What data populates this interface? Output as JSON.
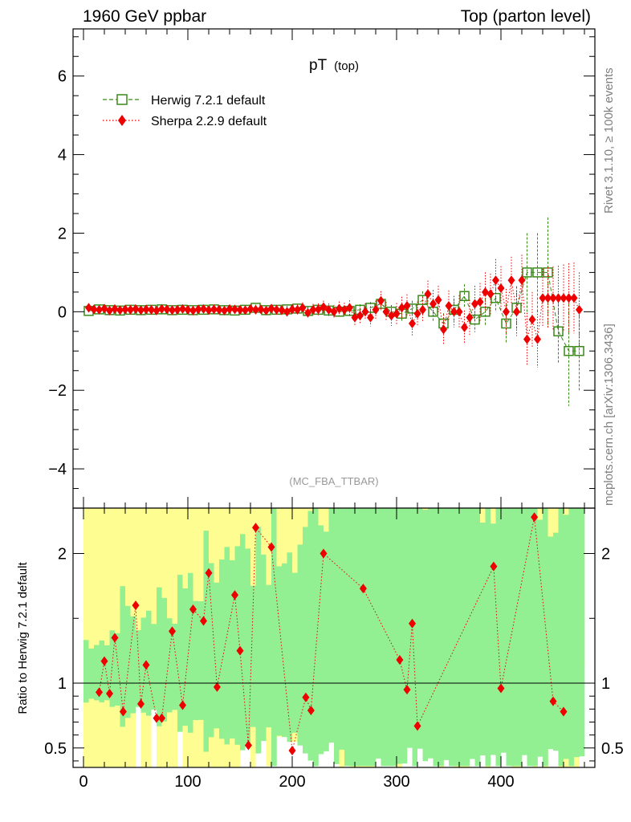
{
  "header": {
    "left": "1960 GeV ppbar",
    "right": "Top (parton level)"
  },
  "side_labels": {
    "rivet": "Rivet 3.1.10, ≥ 100k events",
    "mcplots": "mcplots.cern.ch [arXiv:1306.3436]"
  },
  "chart_data": [
    {
      "type": "scatter",
      "title": "pT",
      "title_sub": "(top)",
      "annotation": "(MC_FBA_TTBAR)",
      "xlim": [
        -10,
        490
      ],
      "ylim": [
        -5,
        7.2
      ],
      "yticks": [
        -4,
        -2,
        0,
        2,
        4,
        6
      ],
      "ytick_labels": [
        "−4",
        "−2",
        "0",
        "2",
        "4",
        "6"
      ],
      "legend_position": "top-left",
      "series": [
        {
          "name": "Herwig 7.2.1 default",
          "color": "#3a8a1a",
          "marker": "open-square",
          "line": "dashed",
          "x": [
            5,
            15,
            25,
            35,
            45,
            55,
            65,
            75,
            85,
            95,
            105,
            115,
            125,
            135,
            145,
            155,
            165,
            175,
            185,
            195,
            205,
            215,
            225,
            235,
            245,
            255,
            265,
            275,
            285,
            295,
            305,
            315,
            325,
            335,
            345,
            355,
            365,
            375,
            385,
            395,
            405,
            415,
            425,
            435,
            445,
            455,
            465,
            475
          ],
          "y": [
            0.02,
            0.06,
            0.04,
            0.03,
            0.05,
            0.04,
            0.05,
            0.06,
            0.04,
            0.05,
            0.04,
            0.05,
            0.06,
            0.04,
            0.03,
            0.05,
            0.1,
            0.04,
            0.05,
            0.06,
            0.08,
            0.02,
            0.05,
            0.03,
            0.0,
            0.02,
            0.05,
            0.1,
            0.2,
            0.0,
            -0.05,
            0.08,
            0.3,
            0.0,
            -0.3,
            0.05,
            0.4,
            -0.2,
            0.0,
            0.35,
            -0.3,
            0.1,
            1.0,
            1.0,
            1.0,
            -0.5,
            -1.0,
            -1.0
          ],
          "yerr": [
            0.05,
            0.05,
            0.05,
            0.05,
            0.05,
            0.05,
            0.05,
            0.05,
            0.05,
            0.05,
            0.06,
            0.06,
            0.06,
            0.06,
            0.07,
            0.07,
            0.08,
            0.08,
            0.09,
            0.09,
            0.1,
            0.1,
            0.11,
            0.12,
            0.12,
            0.13,
            0.14,
            0.15,
            0.16,
            0.17,
            0.18,
            0.2,
            0.22,
            0.24,
            0.26,
            0.28,
            0.3,
            0.32,
            0.34,
            0.36,
            0.5,
            0.55,
            1.0,
            1.0,
            1.4,
            0.8,
            1.4,
            1.0
          ]
        },
        {
          "name": "Sherpa 2.2.9 default",
          "color": "#ee0000",
          "marker": "filled-diamond",
          "line": "dotted",
          "x": [
            5,
            10,
            15,
            20,
            25,
            30,
            35,
            40,
            45,
            50,
            55,
            60,
            65,
            70,
            75,
            80,
            85,
            90,
            95,
            100,
            105,
            110,
            115,
            120,
            125,
            130,
            135,
            140,
            145,
            150,
            155,
            160,
            165,
            170,
            175,
            180,
            185,
            190,
            195,
            200,
            205,
            210,
            215,
            220,
            225,
            230,
            235,
            240,
            245,
            250,
            255,
            260,
            265,
            270,
            275,
            280,
            285,
            290,
            295,
            300,
            305,
            310,
            315,
            320,
            325,
            330,
            335,
            340,
            345,
            350,
            355,
            360,
            365,
            370,
            375,
            380,
            385,
            390,
            395,
            400,
            405,
            410,
            415,
            420,
            425,
            430,
            435,
            440,
            445,
            450,
            455,
            460,
            465,
            470,
            475
          ],
          "y": [
            0.1,
            0.06,
            0.05,
            0.08,
            0.03,
            0.07,
            0.04,
            0.06,
            0.05,
            0.07,
            0.04,
            0.06,
            0.05,
            0.03,
            0.07,
            0.06,
            0.04,
            0.05,
            0.07,
            0.05,
            0.03,
            0.06,
            0.07,
            0.04,
            0.06,
            0.05,
            0.03,
            0.07,
            0.06,
            0.05,
            0.04,
            0.07,
            0.05,
            0.06,
            0.03,
            0.08,
            0.05,
            0.04,
            0.0,
            0.06,
            0.05,
            0.1,
            -0.03,
            0.05,
            0.06,
            0.12,
            0.05,
            0.0,
            0.08,
            0.05,
            0.1,
            -0.15,
            -0.1,
            0.0,
            -0.15,
            0.05,
            0.28,
            0.0,
            -0.1,
            -0.05,
            0.1,
            0.15,
            -0.3,
            -0.05,
            0.05,
            0.45,
            0.2,
            0.3,
            -0.45,
            0.15,
            0.0,
            0.0,
            -0.4,
            -0.15,
            0.2,
            0.25,
            0.5,
            0.45,
            0.8,
            0.6,
            0.0,
            0.8,
            0.0,
            0.8,
            -0.7,
            -0.2,
            -0.7,
            0.35,
            0.35,
            0.35,
            0.35,
            0.35,
            0.35,
            0.35,
            0.05
          ],
          "yerr": [
            0.05,
            0.05,
            0.05,
            0.05,
            0.05,
            0.05,
            0.05,
            0.05,
            0.05,
            0.05,
            0.05,
            0.05,
            0.05,
            0.05,
            0.05,
            0.06,
            0.06,
            0.06,
            0.06,
            0.06,
            0.07,
            0.07,
            0.07,
            0.07,
            0.08,
            0.08,
            0.08,
            0.08,
            0.09,
            0.09,
            0.09,
            0.1,
            0.1,
            0.1,
            0.11,
            0.11,
            0.12,
            0.12,
            0.12,
            0.13,
            0.13,
            0.14,
            0.14,
            0.15,
            0.15,
            0.16,
            0.16,
            0.17,
            0.18,
            0.18,
            0.19,
            0.2,
            0.2,
            0.21,
            0.22,
            0.23,
            0.24,
            0.25,
            0.26,
            0.27,
            0.28,
            0.29,
            0.3,
            0.31,
            0.32,
            0.34,
            0.35,
            0.36,
            0.38,
            0.39,
            0.4,
            0.42,
            0.43,
            0.45,
            0.46,
            0.48,
            0.5,
            0.52,
            0.54,
            0.56,
            0.58,
            0.6,
            0.62,
            0.65,
            0.67,
            0.7,
            0.72,
            0.75,
            0.78,
            0.8,
            0.82,
            0.85,
            0.88,
            0.9,
            0.95
          ]
        }
      ]
    },
    {
      "type": "scatter",
      "ylabel": "Ratio to Herwig 7.2.1 default",
      "xlim": [
        -10,
        490
      ],
      "ylim": [
        0.35,
        2.35
      ],
      "xticks": [
        0,
        100,
        200,
        300,
        400
      ],
      "xtick_labels": [
        "0",
        "100",
        "200",
        "300",
        "400"
      ],
      "yticks": [
        0.5,
        1,
        2
      ],
      "ytick_labels": [
        "0.5",
        "1",
        "2"
      ],
      "reference_line": 1,
      "band_colors": {
        "inner": "#92f092",
        "outer": "#fdfd92"
      },
      "series": [
        {
          "name": "Sherpa 2.2.9 default",
          "color": "#ee0000",
          "marker": "filled-diamond",
          "line": "dotted",
          "x": [
            15,
            20,
            25,
            30,
            38,
            50,
            55,
            60,
            70,
            75,
            85,
            95,
            105,
            115,
            120,
            128,
            145,
            150,
            158,
            165,
            180,
            200,
            213,
            218,
            230,
            268,
            303,
            310,
            315,
            320,
            393,
            400,
            432,
            450,
            460
          ],
          "y": [
            0.93,
            1.17,
            0.92,
            1.35,
            0.78,
            1.6,
            0.84,
            1.14,
            0.73,
            0.73,
            1.4,
            0.83,
            1.57,
            1.48,
            1.85,
            0.97,
            1.68,
            1.25,
            0.52,
            2.2,
            2.05,
            0.48,
            0.89,
            0.79,
            2.0,
            1.73,
            1.18,
            0.95,
            1.46,
            0.67,
            1.9,
            0.96,
            2.28,
            0.86,
            0.78
          ]
        }
      ]
    }
  ]
}
